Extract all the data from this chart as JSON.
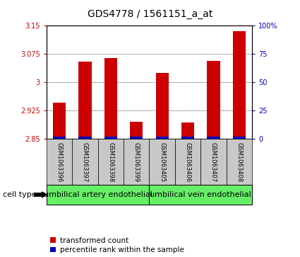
{
  "title": "GDS4778 / 1561151_a_at",
  "samples": [
    "GSM1063396",
    "GSM1063397",
    "GSM1063398",
    "GSM1063399",
    "GSM1063405",
    "GSM1063406",
    "GSM1063407",
    "GSM1063408"
  ],
  "red_values": [
    2.945,
    3.055,
    3.065,
    2.895,
    3.025,
    2.893,
    3.057,
    3.135
  ],
  "blue_pct": [
    2,
    2,
    2,
    2,
    2,
    2,
    2,
    2
  ],
  "ylim_left": [
    2.85,
    3.15
  ],
  "ylim_right": [
    0,
    100
  ],
  "yticks_left": [
    2.85,
    2.925,
    3.0,
    3.075,
    3.15
  ],
  "yticks_right": [
    0,
    25,
    50,
    75,
    100
  ],
  "ytick_labels_left": [
    "2.85",
    "2.925",
    "3",
    "3.075",
    "3.15"
  ],
  "ytick_labels_right": [
    "0",
    "25",
    "50",
    "75",
    "100%"
  ],
  "bar_bottom": 2.85,
  "cell_type_groups": [
    {
      "label": "umbilical artery endothelial",
      "start": 0,
      "end": 3
    },
    {
      "label": "umbilical vein endothelial",
      "start": 4,
      "end": 7
    }
  ],
  "cell_type_label": "cell type",
  "legend_red": "transformed count",
  "legend_blue": "percentile rank within the sample",
  "red_color": "#cc0000",
  "blue_color": "#0000cc",
  "bar_width": 0.5,
  "bg_sample_boxes": "#c8c8c8",
  "bg_cell_type_green": "#66ee66",
  "title_fontsize": 10,
  "tick_fontsize": 7,
  "sample_fontsize": 6,
  "celltype_fontsize": 8
}
